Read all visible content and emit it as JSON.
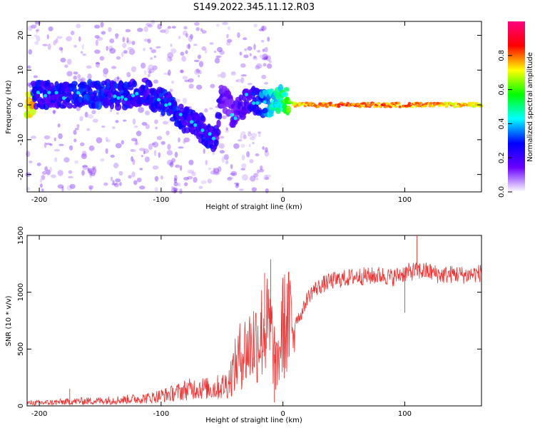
{
  "title": "S149.2022.345.11.12.R03",
  "chart_data": [
    {
      "type": "heatmap",
      "xlabel": "Height of straight line (km)",
      "ylabel": "Frequency (Hz)",
      "xlim": [
        -210,
        163
      ],
      "ylim": [
        -25,
        24
      ],
      "xticks": [
        -200,
        -100,
        0,
        100
      ],
      "yticks": [
        -20,
        -10,
        0,
        10,
        20
      ],
      "grid": false,
      "colormap": [
        "#ffffff",
        "#6a00ff",
        "#0000ff",
        "#00ffff",
        "#00ff00",
        "#ffff00",
        "#ff0000",
        "#ff0080"
      ],
      "colorbar": {
        "label": "Normalized spectral amplitude",
        "range": [
          0.0,
          1.0
        ],
        "ticks": [
          "0.0",
          "0.2",
          "0.4",
          "0.6",
          "0.8"
        ]
      },
      "ridge": [
        {
          "x": -205,
          "y": 3,
          "v": 0.32
        },
        {
          "x": -190,
          "y": 3,
          "v": 0.3
        },
        {
          "x": -175,
          "y": 2.5,
          "v": 0.32
        },
        {
          "x": -160,
          "y": 3,
          "v": 0.35
        },
        {
          "x": -145,
          "y": 3,
          "v": 0.33
        },
        {
          "x": -130,
          "y": 2.5,
          "v": 0.32
        },
        {
          "x": -115,
          "y": 4,
          "v": 0.3
        },
        {
          "x": -100,
          "y": 1,
          "v": 0.33
        },
        {
          "x": -90,
          "y": -1,
          "v": 0.32
        },
        {
          "x": -80,
          "y": -4,
          "v": 0.3
        },
        {
          "x": -70,
          "y": -6,
          "v": 0.3
        },
        {
          "x": -60,
          "y": -9,
          "v": 0.32
        },
        {
          "x": -55,
          "y": -11,
          "v": 0.28
        },
        {
          "x": -50,
          "y": 3,
          "v": 0.22
        },
        {
          "x": -45,
          "y": 0,
          "v": 0.2
        },
        {
          "x": -40,
          "y": -4,
          "v": 0.22
        },
        {
          "x": -30,
          "y": 2,
          "v": 0.25
        },
        {
          "x": -20,
          "y": 1,
          "v": 0.35
        },
        {
          "x": -10,
          "y": 0.5,
          "v": 0.5
        },
        {
          "x": 0,
          "y": 1.5,
          "v": 0.55
        },
        {
          "x": 10,
          "y": 0,
          "v": 0.8
        },
        {
          "x": 50,
          "y": 0,
          "v": 0.9
        },
        {
          "x": 100,
          "y": 0,
          "v": 0.85
        },
        {
          "x": 163,
          "y": 0,
          "v": 0.8
        }
      ]
    },
    {
      "type": "line",
      "xlabel": "Height of straight line (km)",
      "ylabel": "SNR (10 * v/v)",
      "xlim": [
        -210,
        163
      ],
      "ylim": [
        0,
        1500
      ],
      "xticks": [
        -200,
        -100,
        0,
        100
      ],
      "yticks": [
        0,
        500,
        1000,
        1500
      ],
      "grid": false,
      "color": "#ee3333",
      "x": [
        -210,
        -190,
        -170,
        -150,
        -130,
        -110,
        -100,
        -90,
        -80,
        -70,
        -60,
        -50,
        -45,
        -40,
        -35,
        -30,
        -25,
        -20,
        -15,
        -10,
        -5,
        0,
        5,
        10,
        15,
        20,
        25,
        30,
        35,
        40,
        50,
        60,
        70,
        80,
        90,
        100,
        110,
        120,
        130,
        140,
        150,
        163
      ],
      "y": [
        25,
        30,
        40,
        45,
        55,
        70,
        90,
        110,
        140,
        160,
        150,
        170,
        200,
        330,
        450,
        500,
        560,
        600,
        700,
        650,
        320,
        700,
        720,
        760,
        800,
        950,
        1020,
        1050,
        1080,
        1100,
        1120,
        1140,
        1140,
        1150,
        1130,
        1170,
        1190,
        1180,
        1150,
        1160,
        1150,
        1170
      ],
      "spikes": [
        {
          "x": -175,
          "y": 150
        },
        {
          "x": -10,
          "y": 1290
        },
        {
          "x": -15,
          "y": 1170
        },
        {
          "x": -7,
          "y": 30
        },
        {
          "x": 110,
          "y": 1500
        },
        {
          "x": 100,
          "y": 820
        }
      ]
    }
  ]
}
